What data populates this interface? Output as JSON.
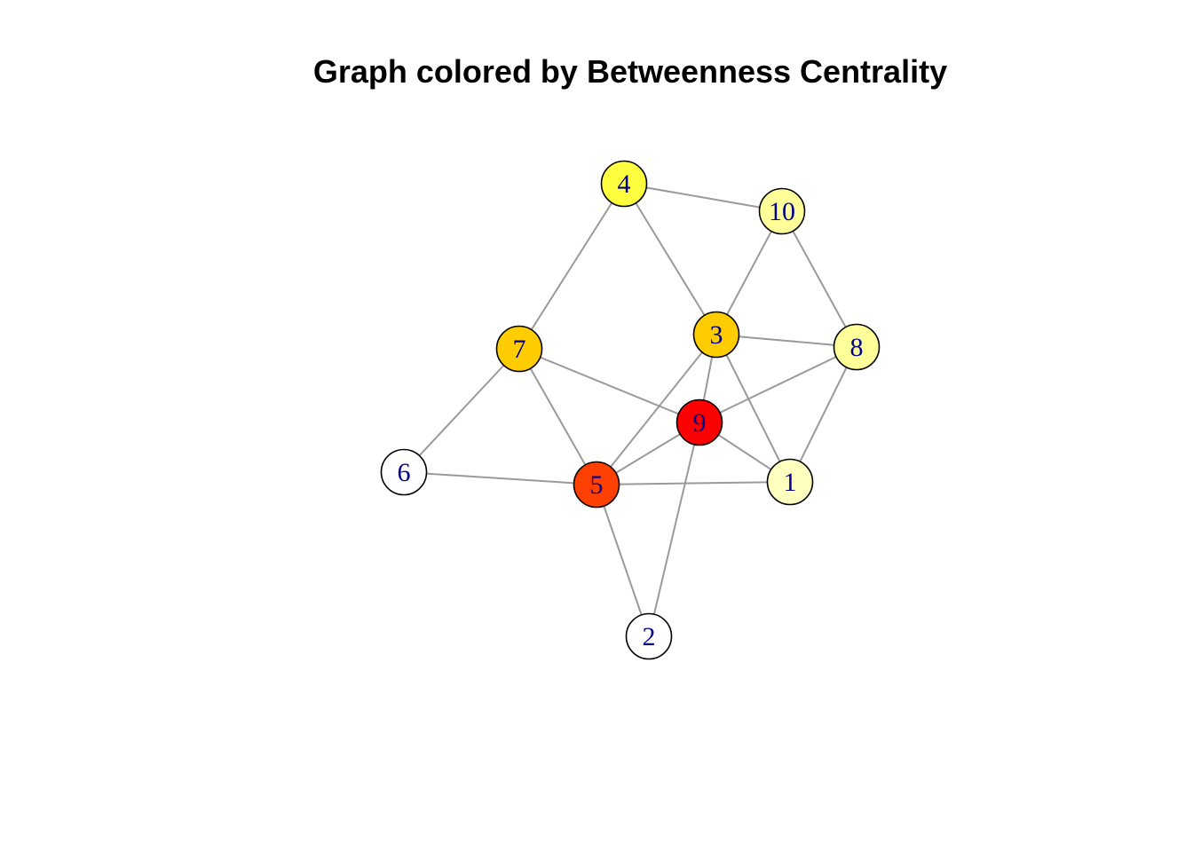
{
  "title": "Graph colored by Betweenness Centrality",
  "colors": {
    "edge": "#9a9a9a",
    "label": "#00008b",
    "node_border": "#000000"
  },
  "nodes": [
    {
      "id": "1",
      "label": "1",
      "color": "#ffffc0"
    },
    {
      "id": "2",
      "label": "2",
      "color": "#ffffff"
    },
    {
      "id": "3",
      "label": "3",
      "color": "#ffcc00"
    },
    {
      "id": "4",
      "label": "4",
      "color": "#ffff40"
    },
    {
      "id": "5",
      "label": "5",
      "color": "#ff4000"
    },
    {
      "id": "6",
      "label": "6",
      "color": "#ffffff"
    },
    {
      "id": "7",
      "label": "7",
      "color": "#ffcc00"
    },
    {
      "id": "8",
      "label": "8",
      "color": "#ffff99"
    },
    {
      "id": "9",
      "label": "9",
      "color": "#ff0000"
    },
    {
      "id": "10",
      "label": "10",
      "color": "#ffff99"
    }
  ],
  "edges": [
    [
      "4",
      "10"
    ],
    [
      "4",
      "7"
    ],
    [
      "4",
      "3"
    ],
    [
      "10",
      "3"
    ],
    [
      "10",
      "8"
    ],
    [
      "3",
      "8"
    ],
    [
      "3",
      "9"
    ],
    [
      "3",
      "5"
    ],
    [
      "3",
      "1"
    ],
    [
      "7",
      "9"
    ],
    [
      "7",
      "6"
    ],
    [
      "7",
      "5"
    ],
    [
      "8",
      "9"
    ],
    [
      "8",
      "1"
    ],
    [
      "9",
      "5"
    ],
    [
      "9",
      "1"
    ],
    [
      "9",
      "2"
    ],
    [
      "6",
      "5"
    ],
    [
      "5",
      "1"
    ],
    [
      "5",
      "2"
    ]
  ]
}
